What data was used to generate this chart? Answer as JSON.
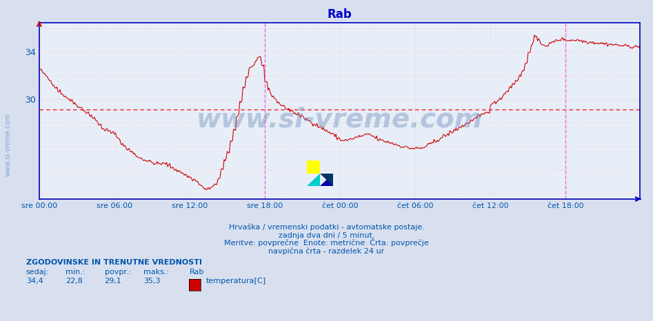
{
  "title": "Rab",
  "title_color": "#0000cc",
  "bg_color": "#d8e0f0",
  "plot_bg_color": "#e8eef8",
  "grid_color": "#ffaaaa",
  "line_color": "#cc0000",
  "avg_line_color": "#ff0000",
  "avg_value": 29.1,
  "ymin": 21.5,
  "ymax": 36.5,
  "yticks": [
    22,
    24,
    26,
    28,
    30,
    32,
    34,
    36
  ],
  "ytick_labels_show": [
    34,
    30
  ],
  "n_points": 576,
  "xlabel_color": "#555555",
  "xtick_labels": [
    "sre 00:00",
    "sre 06:00",
    "sre 12:00",
    "sre 18:00",
    "čet 00:00",
    "čet 06:00",
    "čet 12:00",
    "čet 18:00"
  ],
  "xtick_positions": [
    0,
    72,
    144,
    216,
    288,
    360,
    432,
    504
  ],
  "vline_positions": [
    216,
    504
  ],
  "vline_color": "#dd44dd",
  "axis_color": "#0000bb",
  "watermark": "www.si-vreme.com",
  "watermark_color": "#6688bb",
  "watermark_alpha": 0.4,
  "bottom_text1": "Hrvaška / vremenski podatki - avtomatske postaje.",
  "bottom_text2": "zadnja dva dni / 5 minut.",
  "bottom_text3": "Meritve: povprečne  Enote: metrične  Črta: povprečje",
  "bottom_text4": "navpična črta - razdelek 24 ur",
  "legend_title": "ZGODOVINSKE IN TRENUTNE VREDNOSTI",
  "legend_sedaj": "34,4",
  "legend_min": "22,8",
  "legend_povpr": "29,1",
  "legend_maks": "35,3",
  "legend_label": "temperatura[C]",
  "legend_color": "#cc0000",
  "text_color": "#0055aa",
  "arrow_color": "#cc0000"
}
